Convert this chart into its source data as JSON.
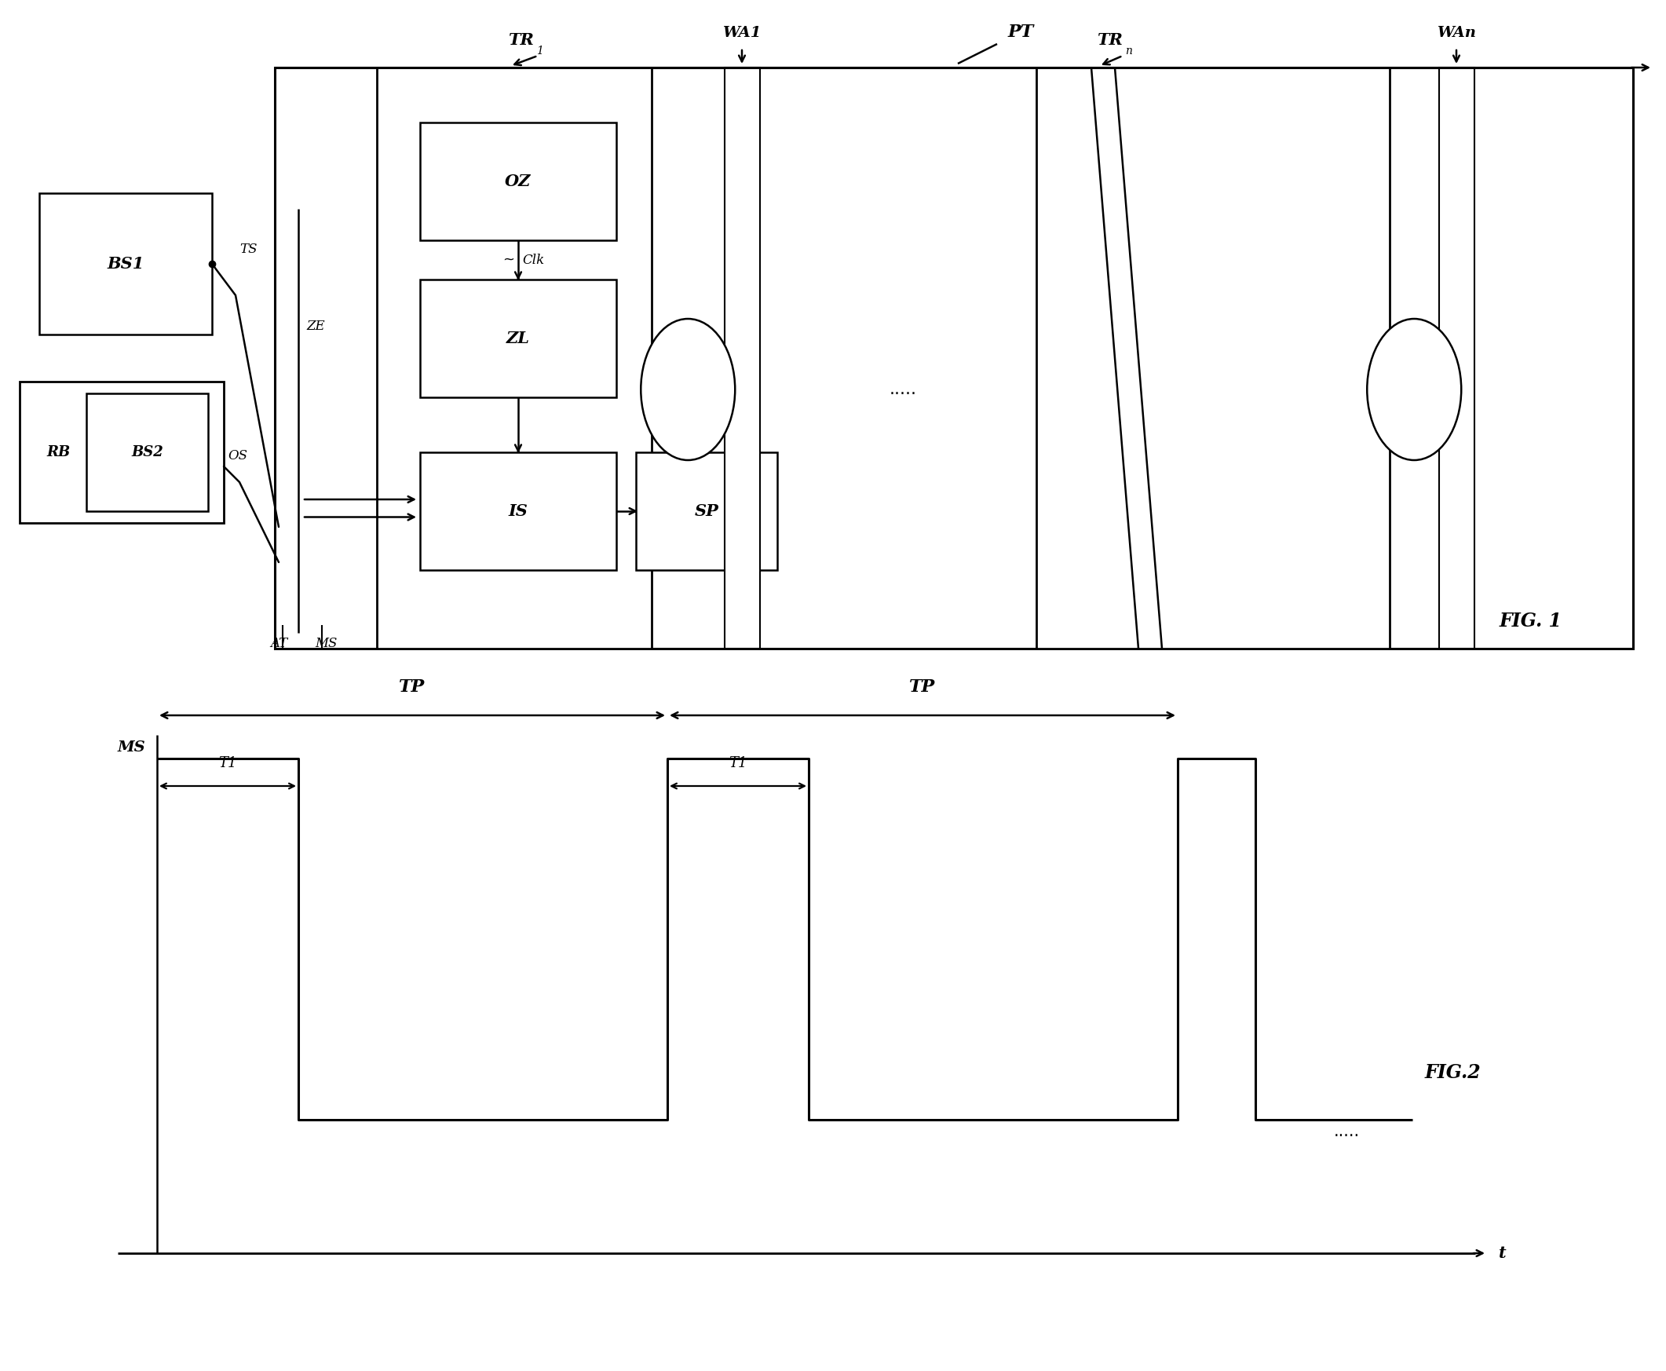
{
  "fig_width": 21.22,
  "fig_height": 17.46,
  "bg_color": "#ffffff",
  "line_color": "#000000",
  "fig1_title": "FIG. 1",
  "fig2_title": "FIG.2",
  "pt_label": "PT",
  "bs1_label": "BS1",
  "rb_label": "RB",
  "bs2_label": "BS2",
  "oz_label": "OZ",
  "zl_label": "ZL",
  "is_label": "IS",
  "sp_label": "SP",
  "clk_label": "Clk",
  "ze_label": "ZE",
  "ts_label": "TS",
  "os_label": "OS",
  "at_label": "AT",
  "ms_label": "MS",
  "tr1_label": "TR",
  "tr1_sub": "1",
  "wa1_label": "WA1",
  "trn_label": "TR",
  "trn_sub": "n",
  "wan_label": "WAn",
  "dots_label": ".....",
  "tp_label": "TP",
  "t1_label": "T1",
  "t_label": "t",
  "ms2_label": "MS"
}
